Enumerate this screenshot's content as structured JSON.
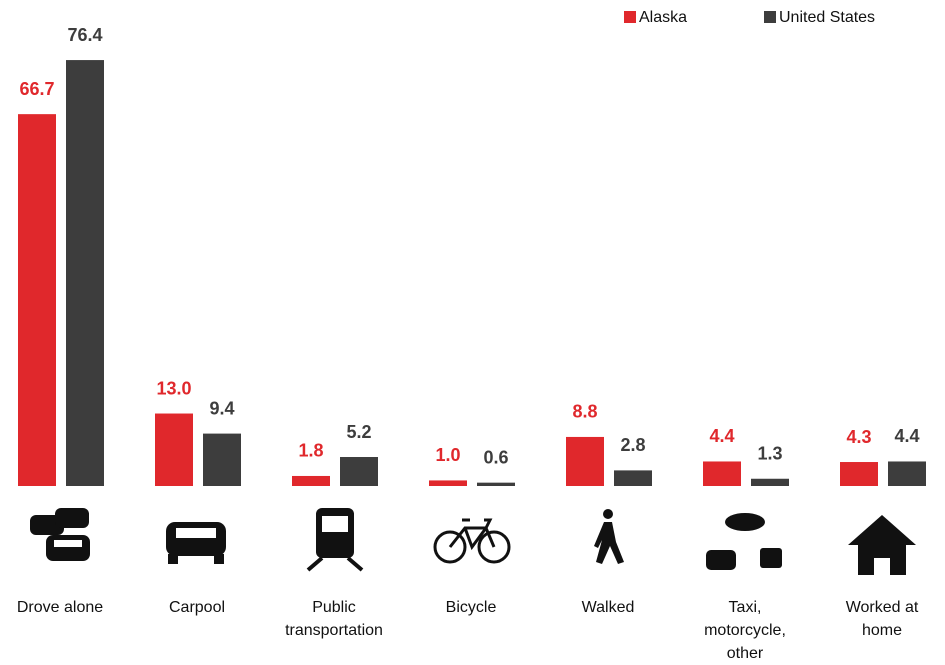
{
  "chart_data": {
    "type": "bar",
    "categories": [
      "Drove alone",
      "Carpool",
      "Public transportation",
      "Bicycle",
      "Walked",
      "Taxi, motorcycle, other",
      "Worked at home"
    ],
    "series": [
      {
        "name": "Alaska",
        "color": "#e0282c",
        "values": [
          66.7,
          13.0,
          1.8,
          1.0,
          8.8,
          4.4,
          4.3
        ],
        "value_labels": [
          "66.7",
          "13.0",
          "1.8",
          "1.0",
          "8.8",
          "4.4",
          "4.3"
        ]
      },
      {
        "name": "United States",
        "color": "#3d3d3d",
        "values": [
          76.4,
          9.4,
          5.2,
          0.6,
          2.8,
          1.3,
          4.4
        ],
        "value_labels": [
          "76.4",
          "9.4",
          "5.2",
          "0.6",
          "2.8",
          "1.3",
          "4.4"
        ]
      }
    ],
    "ylim": [
      0,
      80
    ],
    "legend": "top-right"
  }
}
